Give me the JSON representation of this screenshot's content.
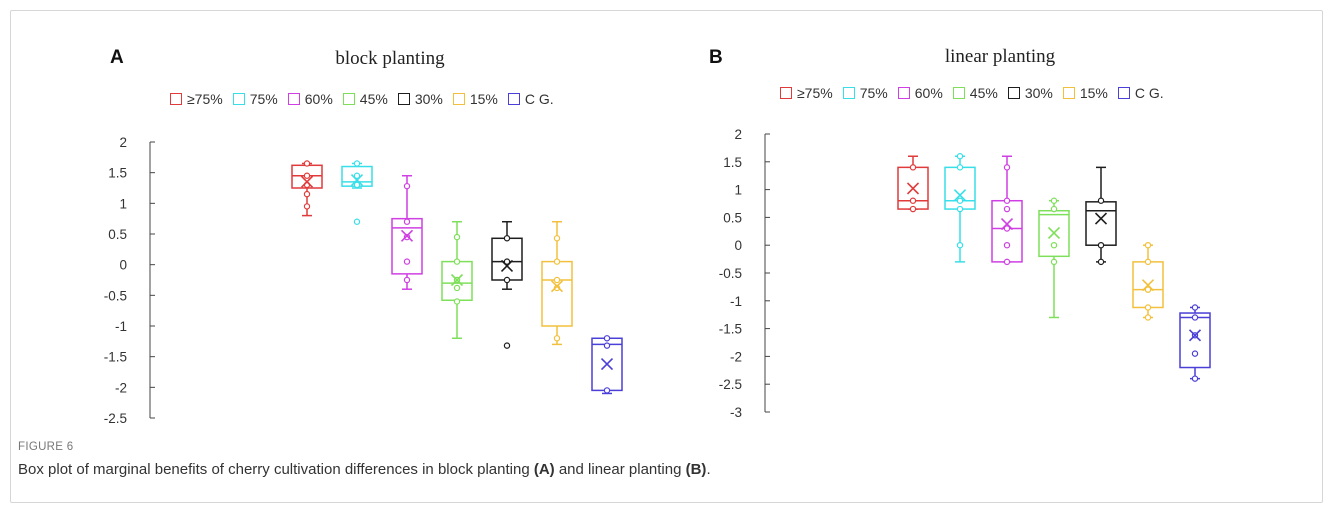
{
  "figure": {
    "label": "FIGURE 6",
    "caption_parts": [
      "Box plot of marginal benefits of cherry cultivation differences in block planting ",
      "(A)",
      " and linear planting ",
      "(B)",
      "."
    ]
  },
  "chart_data": [
    {
      "type": "box",
      "panel_label": "A",
      "title": "block planting",
      "xlabel": "",
      "ylabel": "",
      "ylim": [
        -2.5,
        2
      ],
      "yticks": [
        "2",
        "1.5",
        "1",
        "0.5",
        "0",
        "-0.5",
        "-1",
        "-1.5",
        "-2",
        "-2.5"
      ],
      "ytick_values": [
        2,
        1.5,
        1,
        0.5,
        0,
        -0.5,
        -1,
        -1.5,
        -2,
        -2.5
      ],
      "legend_position": "top",
      "series": [
        {
          "name": "≥75%",
          "color": "#e03a3a",
          "whisker_low": 0.8,
          "q1": 1.25,
          "median": 1.45,
          "q3": 1.62,
          "whisker_high": 1.65,
          "mean": 1.35,
          "points": [
            1.65,
            1.45,
            1.3,
            1.15,
            0.95
          ],
          "outliers": []
        },
        {
          "name": "75%",
          "color": "#39dfe8",
          "whisker_low": 1.25,
          "q1": 1.28,
          "median": 1.35,
          "q3": 1.6,
          "whisker_high": 1.65,
          "mean": 1.38,
          "points": [
            1.65,
            1.45,
            1.3
          ],
          "outliers": [
            0.7
          ]
        },
        {
          "name": "60%",
          "color": "#cf3fe3",
          "whisker_low": -0.4,
          "q1": -0.15,
          "median": 0.6,
          "q3": 0.75,
          "whisker_high": 1.45,
          "mean": 0.47,
          "points": [
            1.28,
            0.7,
            0.45,
            0.05,
            -0.25
          ],
          "outliers": []
        },
        {
          "name": "45%",
          "color": "#7ee05a",
          "whisker_low": -1.2,
          "q1": -0.58,
          "median": -0.3,
          "q3": 0.05,
          "whisker_high": 0.7,
          "mean": -0.25,
          "points": [
            0.45,
            0.05,
            -0.25,
            -0.38,
            -0.6
          ],
          "outliers": []
        },
        {
          "name": "30%",
          "color": "#1e1e1e",
          "whisker_low": -0.4,
          "q1": -0.25,
          "median": 0.05,
          "q3": 0.43,
          "whisker_high": 0.7,
          "mean": -0.02,
          "points": [
            0.43,
            0.05,
            -0.25
          ],
          "outliers": [
            -1.32
          ]
        },
        {
          "name": "15%",
          "color": "#f2c03c",
          "whisker_low": -1.3,
          "q1": -1.0,
          "median": -0.25,
          "q3": 0.05,
          "whisker_high": 0.7,
          "mean": -0.35,
          "points": [
            0.43,
            0.05,
            -0.25,
            -0.38,
            -1.2
          ],
          "outliers": []
        },
        {
          "name": "C G.",
          "color": "#4a3fd6",
          "whisker_low": -2.1,
          "q1": -2.05,
          "median": -1.3,
          "q3": -1.2,
          "whisker_high": -1.2,
          "mean": -1.62,
          "points": [
            -1.2,
            -1.32,
            -2.05
          ],
          "outliers": []
        }
      ]
    },
    {
      "type": "box",
      "panel_label": "B",
      "title": "linear planting",
      "xlabel": "",
      "ylabel": "",
      "ylim": [
        -3,
        2
      ],
      "yticks": [
        "2",
        "1.5",
        "1",
        "0.5",
        "0",
        "-0.5",
        "-1",
        "-1.5",
        "-2",
        "-2.5",
        "-3"
      ],
      "ytick_values": [
        2,
        1.5,
        1,
        0.5,
        0,
        -0.5,
        -1,
        -1.5,
        -2,
        -2.5,
        -3
      ],
      "legend_position": "top",
      "series": [
        {
          "name": "≥75%",
          "color": "#e03a3a",
          "whisker_low": 0.65,
          "q1": 0.65,
          "median": 0.8,
          "q3": 1.4,
          "whisker_high": 1.6,
          "mean": 1.02,
          "points": [
            1.4,
            0.8,
            0.65
          ],
          "outliers": []
        },
        {
          "name": "75%",
          "color": "#39dfe8",
          "whisker_low": -0.3,
          "q1": 0.65,
          "median": 0.8,
          "q3": 1.4,
          "whisker_high": 1.6,
          "mean": 0.9,
          "points": [
            1.6,
            1.4,
            0.8,
            0.65,
            0.0
          ],
          "outliers": []
        },
        {
          "name": "60%",
          "color": "#cf3fe3",
          "whisker_low": -0.3,
          "q1": -0.3,
          "median": 0.3,
          "q3": 0.8,
          "whisker_high": 1.6,
          "mean": 0.38,
          "points": [
            1.4,
            0.8,
            0.65,
            0.3,
            0.0,
            -0.3
          ],
          "outliers": []
        },
        {
          "name": "45%",
          "color": "#7ee05a",
          "whisker_low": -1.3,
          "q1": -0.2,
          "median": 0.55,
          "q3": 0.62,
          "whisker_high": 0.8,
          "mean": 0.22,
          "points": [
            0.8,
            0.65,
            0.0,
            -0.3
          ],
          "outliers": []
        },
        {
          "name": "30%",
          "color": "#1e1e1e",
          "whisker_low": -0.3,
          "q1": 0.0,
          "median": 0.62,
          "q3": 0.78,
          "whisker_high": 1.4,
          "mean": 0.48,
          "points": [
            0.8,
            0.0,
            -0.3
          ],
          "outliers": []
        },
        {
          "name": "15%",
          "color": "#f2c03c",
          "whisker_low": -1.3,
          "q1": -1.12,
          "median": -0.8,
          "q3": -0.3,
          "whisker_high": 0.0,
          "mean": -0.72,
          "points": [
            0.0,
            -0.3,
            -0.8,
            -1.12,
            -1.3
          ],
          "outliers": []
        },
        {
          "name": "C G.",
          "color": "#4a3fd6",
          "whisker_low": -2.4,
          "q1": -2.2,
          "median": -1.3,
          "q3": -1.22,
          "whisker_high": -1.12,
          "mean": -1.62,
          "points": [
            -1.12,
            -1.3,
            -1.62,
            -1.95,
            -2.4
          ],
          "outliers": []
        }
      ]
    }
  ]
}
